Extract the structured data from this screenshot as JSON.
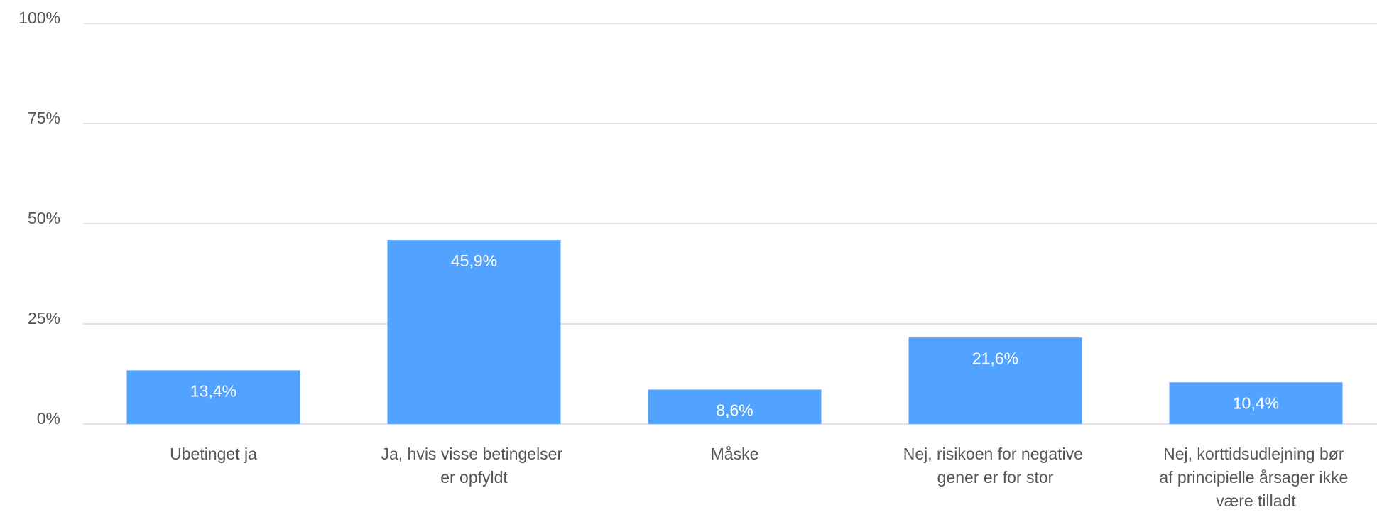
{
  "chart_data": {
    "type": "bar",
    "categories": [
      "Ubetinget ja",
      "Ja, hvis visse betingelser er opfyldt",
      "Måske",
      "Nej, risikoen for negative gener er for stor",
      "Nej, korttidsudlejning bør af principielle årsager ikke være tilladt"
    ],
    "values": [
      13.4,
      45.9,
      8.6,
      21.6,
      10.4
    ],
    "value_labels": [
      "13,4%",
      "45,9%",
      "8,6%",
      "21,6%",
      "10,4%"
    ],
    "color": "#52a2ff",
    "ylim": [
      0,
      100
    ],
    "yticks": [
      {
        "value": 0,
        "label": "0%"
      },
      {
        "value": 25,
        "label": "25%"
      },
      {
        "value": 50,
        "label": "50%"
      },
      {
        "value": 75,
        "label": "75%"
      },
      {
        "value": 100,
        "label": "100%"
      }
    ],
    "grid": true
  }
}
